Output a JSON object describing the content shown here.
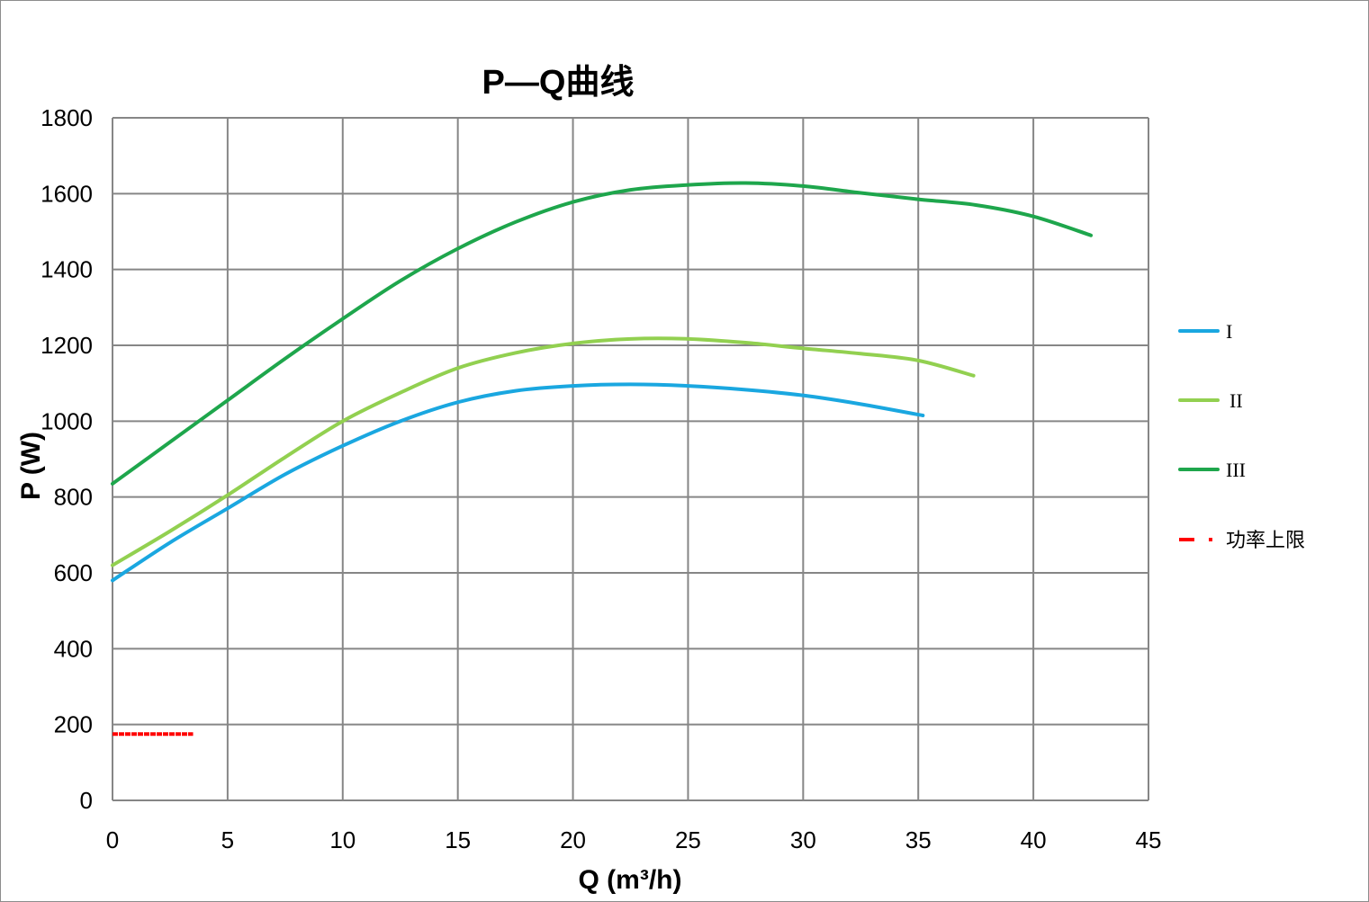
{
  "chart_data": {
    "type": "line",
    "title": "P—Q曲线",
    "xlabel": "Q (m³/h)",
    "ylabel": "P (W)",
    "xlim": [
      0,
      45
    ],
    "ylim": [
      0,
      1800
    ],
    "xticks": [
      "0",
      "5",
      "10",
      "15",
      "20",
      "25",
      "30",
      "35",
      "40",
      "45"
    ],
    "yticks": [
      "0",
      "200",
      "400",
      "600",
      "800",
      "1000",
      "1200",
      "1400",
      "1600",
      "1800"
    ],
    "grid": true,
    "legend_position": "right",
    "series": [
      {
        "name": "I",
        "color": "#1aa7e0",
        "style": "solid",
        "x": [
          0,
          2.5,
          5,
          7.5,
          10,
          12.5,
          15,
          17.5,
          20,
          22.5,
          25,
          27.5,
          30,
          32.5,
          35.2
        ],
        "y": [
          580,
          680,
          770,
          860,
          935,
          1000,
          1050,
          1080,
          1093,
          1097,
          1093,
          1083,
          1068,
          1045,
          1015
        ]
      },
      {
        "name": "II",
        "color": "#92d050",
        "style": "solid",
        "x": [
          0,
          2.5,
          5,
          7.5,
          10,
          12.5,
          15,
          17.5,
          20,
          22.5,
          25,
          27.5,
          30,
          32.5,
          35,
          37.4
        ],
        "y": [
          620,
          710,
          805,
          905,
          1000,
          1075,
          1140,
          1180,
          1205,
          1217,
          1217,
          1207,
          1192,
          1178,
          1160,
          1120
        ]
      },
      {
        "name": "III",
        "color": "#1ea64c",
        "style": "solid",
        "x": [
          0,
          2.5,
          5,
          7.5,
          10,
          12.5,
          15,
          17.5,
          20,
          22.5,
          25,
          27.5,
          30,
          32.5,
          35,
          37.5,
          40,
          42.5
        ],
        "y": [
          835,
          945,
          1055,
          1165,
          1270,
          1370,
          1455,
          1525,
          1578,
          1610,
          1623,
          1628,
          1620,
          1602,
          1585,
          1570,
          1540,
          1490
        ]
      },
      {
        "name": "功率上限",
        "color": "#ff0000",
        "style": "dashed",
        "x": [
          0,
          3.5
        ],
        "y": [
          175,
          175
        ]
      }
    ]
  }
}
